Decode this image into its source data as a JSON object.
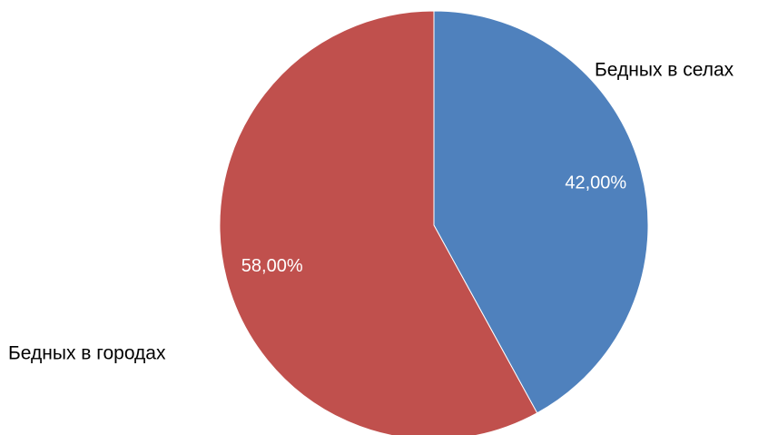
{
  "chart_data": {
    "type": "pie",
    "title": "",
    "start_angle_deg": 0,
    "direction": "clockwise",
    "slices": [
      {
        "name": "Бедных в селах",
        "value": 42.0,
        "label": "42,00%",
        "color": "#4F81BD"
      },
      {
        "name": "Бедных в городах",
        "value": 58.0,
        "label": "58,00%",
        "color": "#C0504D"
      }
    ],
    "legend": "none",
    "category_labels": "outside"
  }
}
